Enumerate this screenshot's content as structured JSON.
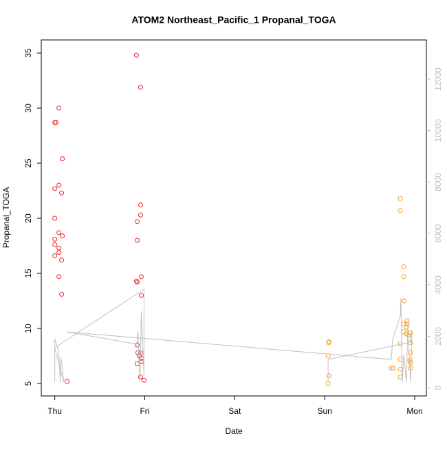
{
  "chart_data": {
    "type": "scatter",
    "title": "ATOM2 Northeast_Pacific_1 Propanal_TOGA",
    "x_label": "Date",
    "y_label": "Propanal_TOGA",
    "xlim": [
      -0.15,
      4.13
    ],
    "xticks": [
      {
        "value": 0,
        "label": "Thu"
      },
      {
        "value": 1,
        "label": "Fri"
      },
      {
        "value": 2,
        "label": "Sat"
      },
      {
        "value": 3,
        "label": "Sun"
      },
      {
        "value": 4,
        "label": "Mon"
      }
    ],
    "ylim": [
      3.875,
      36.19
    ],
    "yticks": [
      5,
      10,
      15,
      20,
      25,
      30,
      35
    ],
    "y2lim": [
      -321,
      13527
    ],
    "y2ticks": [
      0,
      2000,
      4000,
      6000,
      8000,
      10000,
      12000
    ],
    "y2_color": "#bfbfbf",
    "series": [
      {
        "color": "#e8262a",
        "x": [
          0,
          0.015,
          0.046,
          0.084,
          0.046,
          0,
          0.076,
          0,
          0.046,
          0.084,
          0,
          0,
          0.046,
          0.046,
          0,
          0.076,
          0.046,
          0.076,
          0.137,
          0.908,
          0.954,
          0.954,
          0.954,
          0.916,
          0.916,
          0.962,
          0.908,
          0.916,
          0.962,
          0.916,
          0.924,
          0.954,
          0.939,
          0.962,
          0.962,
          0.916,
          0.954,
          0.992
        ],
        "values": [
          28.7,
          28.7,
          30.0,
          25.4,
          23.0,
          22.7,
          22.3,
          20.0,
          18.7,
          18.4,
          18.1,
          17.6,
          17.3,
          16.9,
          16.6,
          16.2,
          14.7,
          13.1,
          5.2,
          34.8,
          31.9,
          21.2,
          20.3,
          19.7,
          18.0,
          14.7,
          14.3,
          14.2,
          13.0,
          8.5,
          7.8,
          7.8,
          7.5,
          7.3,
          7.0,
          6.8,
          5.6,
          5.3
        ]
      },
      {
        "color": "#ff9f1a",
        "x": [
          3.046,
          3.046,
          3.038,
          3.046,
          3.038,
          3.84,
          3.84,
          3.878,
          3.878,
          3.885,
          3.916,
          3.916,
          3.878,
          3.908,
          3.878,
          3.954,
          3.908,
          3.931,
          3.954,
          3.84,
          3.84,
          3.954,
          3.947,
          3.954,
          3.74,
          3.763,
          3.84,
          3.954,
          3.84
        ],
        "values": [
          8.8,
          8.7,
          7.5,
          5.7,
          5.0,
          21.8,
          20.7,
          15.6,
          14.7,
          12.5,
          10.7,
          10.4,
          10.4,
          10.1,
          9.7,
          9.6,
          9.5,
          9.4,
          8.7,
          8.6,
          7.2,
          7.8,
          7.1,
          6.9,
          6.4,
          6.4,
          6.3,
          6.4,
          5.6
        ]
      },
      {
        "color": "#bfbfbf",
        "axis": "y2",
        "line": true,
        "x": [
          0,
          0,
          0.031,
          0.046,
          0.061,
          0.069,
          0.092,
          0.099,
          0,
          0.992,
          0.992,
          0.962,
          0.947,
          0.924,
          0.916,
          0.137,
          3.74,
          3.756,
          3.84,
          3.847,
          3.863,
          3.878,
          3.893,
          3.908,
          3.924,
          3.939,
          3.954,
          3.969,
          3.954,
          3.038,
          3.038
        ],
        "values": [
          214,
          1902,
          1554,
          1286,
          214,
          1152,
          482,
          214,
          1554,
          3830,
          482,
          2973,
          214,
          2223,
          1688,
          2170,
          1098,
          1902,
          2759,
          3482,
          214,
          1286,
          750,
          214,
          2491,
          1286,
          214,
          2223,
          1768,
          1098,
          214
        ]
      }
    ]
  }
}
